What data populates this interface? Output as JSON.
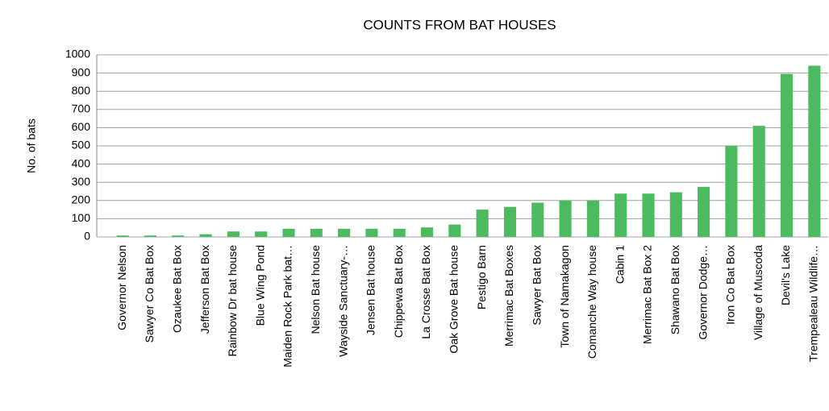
{
  "chart_data": {
    "type": "bar",
    "title": "COUNTS FROM BAT HOUSES",
    "y_label": "No. of bats",
    "categories": [
      "Governor Nelson",
      "Sawyer Co Bat Box",
      "Ozaukee Bat Box",
      "Jefferson Bat Box",
      "Rainbow Dr bat house",
      "Blue Wing Pond",
      "Maiden Rock Park bat…",
      "Nelson Bat house",
      "Wayside Sanctuary-…",
      "Jensen Bat house",
      "Chippewa Bat Box",
      "La Crosse Bat Box",
      "Oak Grove Bat house",
      "Pestigo Barn",
      "Merrimac Bat Boxes",
      "Sawyer Bat Box",
      "Town of Namakagon",
      "Comanche Way house",
      "Cabin 1",
      "Merrimac Bat Box 2",
      "Shawano Bat Box",
      "Governor Dodge…",
      "Iron Co Bat Box",
      "Village of Muscoda",
      "Devil's Lake",
      "Trempealeau Wildlife…"
    ],
    "values": [
      8,
      8,
      8,
      15,
      30,
      30,
      45,
      45,
      45,
      45,
      45,
      52,
      68,
      150,
      165,
      188,
      200,
      200,
      238,
      238,
      245,
      275,
      500,
      610,
      895,
      940
    ],
    "color": "#4cbb5f",
    "ylim": [
      0,
      1000
    ],
    "yticks": [
      0,
      100,
      200,
      300,
      400,
      500,
      600,
      700,
      800,
      900,
      1000
    ],
    "grid": true
  }
}
